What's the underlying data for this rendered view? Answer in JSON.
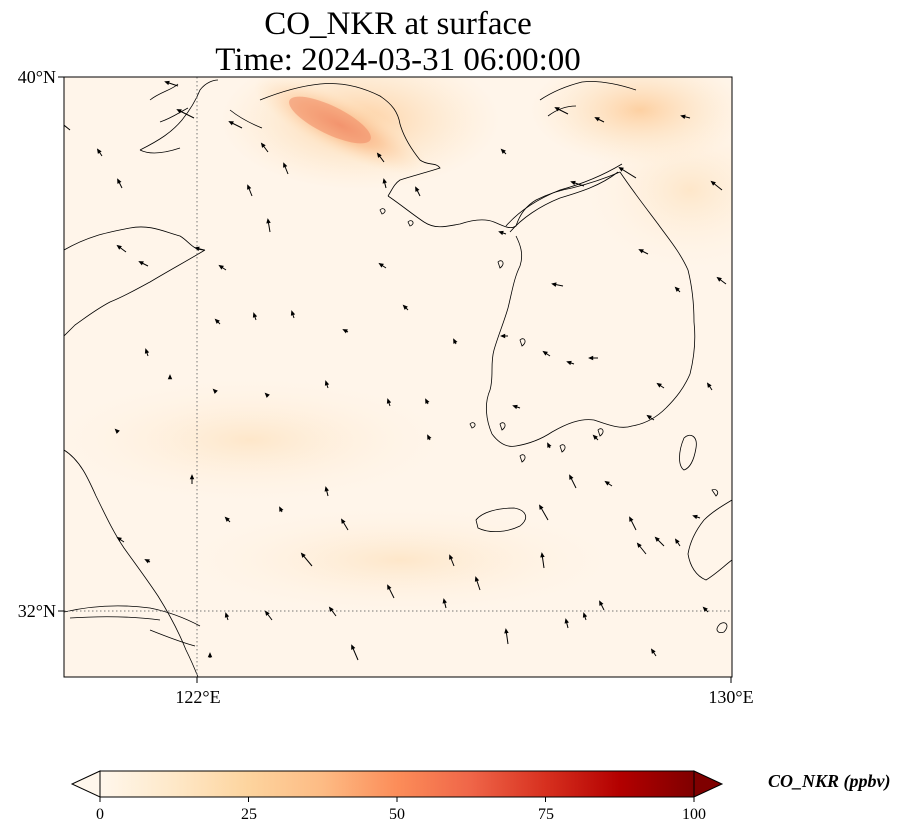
{
  "title": {
    "line1": "CO_NKR at surface",
    "line2": "Time: 2024-03-31 06:00:00"
  },
  "map": {
    "lat_labels": [
      "40°N",
      "32°N"
    ],
    "lon_labels": [
      "122°E",
      "130°E"
    ],
    "extent": {
      "lon_min": 120,
      "lon_max": 130,
      "lat_min": 31,
      "lat_max": 40
    },
    "gridlines": {
      "style": "dotted",
      "lons": [
        122
      ],
      "lats": [
        32
      ]
    }
  },
  "colorbar": {
    "label": "CO_NKR (ppbv)",
    "ticks": [
      "0",
      "25",
      "50",
      "75",
      "100"
    ],
    "range": [
      0,
      100
    ],
    "colormap": "OrRd",
    "extend": "both"
  }
}
